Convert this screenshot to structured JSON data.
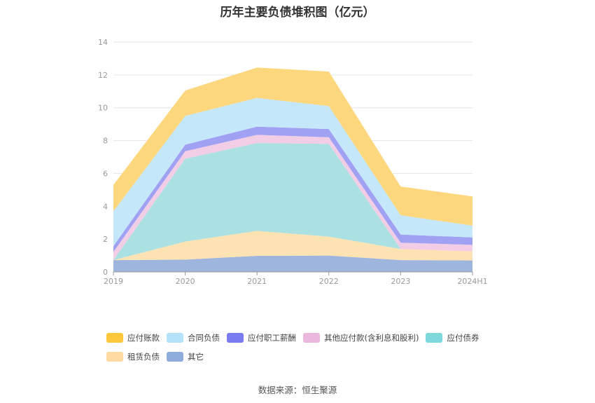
{
  "chart_data": {
    "type": "area",
    "stacked": true,
    "title": "历年主要负债堆积图（亿元）",
    "source": "数据来源：恒生聚源",
    "categories": [
      "2019",
      "2020",
      "2021",
      "2022",
      "2023",
      "2024H1"
    ],
    "ylim": [
      0,
      14
    ],
    "yticks": [
      0,
      2,
      4,
      6,
      8,
      10,
      12,
      14
    ],
    "grid": true,
    "legend_position": "bottom",
    "series": [
      {
        "name": "其它",
        "color": "#9eb5dd",
        "values": [
          0.72,
          0.75,
          0.98,
          1.0,
          0.72,
          0.7
        ]
      },
      {
        "name": "租赁负债",
        "color": "#fde2b3",
        "values": [
          0.0,
          1.1,
          1.52,
          1.15,
          0.68,
          0.55
        ]
      },
      {
        "name": "应付债券",
        "color": "#abe1e2",
        "values": [
          0.0,
          5.05,
          5.35,
          5.65,
          0.0,
          0.0
        ]
      },
      {
        "name": "其他应付款(含利息和股利)",
        "color": "#f2cde6",
        "values": [
          0.5,
          0.45,
          0.5,
          0.4,
          0.38,
          0.4
        ]
      },
      {
        "name": "应付职工薪酬",
        "color": "#a1a1f3",
        "values": [
          0.35,
          0.4,
          0.5,
          0.5,
          0.5,
          0.45
        ]
      },
      {
        "name": "合同负债",
        "color": "#c4e7f9",
        "values": [
          2.13,
          1.75,
          1.75,
          1.4,
          1.17,
          0.72
        ]
      },
      {
        "name": "应付账款",
        "color": "#fdd77e",
        "values": [
          1.6,
          1.55,
          1.85,
          2.1,
          1.75,
          1.78
        ]
      }
    ],
    "legend_order": [
      {
        "name": "应付账款",
        "color": "#fec83d"
      },
      {
        "name": "合同负债",
        "color": "#b3e2f9"
      },
      {
        "name": "应付职工薪酬",
        "color": "#7b7bf0"
      },
      {
        "name": "其他应付款(含利息和股利)",
        "color": "#eab8dc"
      },
      {
        "name": "应付债券",
        "color": "#7ed7d8"
      },
      {
        "name": "租赁负债",
        "color": "#fddaa1"
      },
      {
        "name": "其它",
        "color": "#8eaddc"
      }
    ]
  }
}
